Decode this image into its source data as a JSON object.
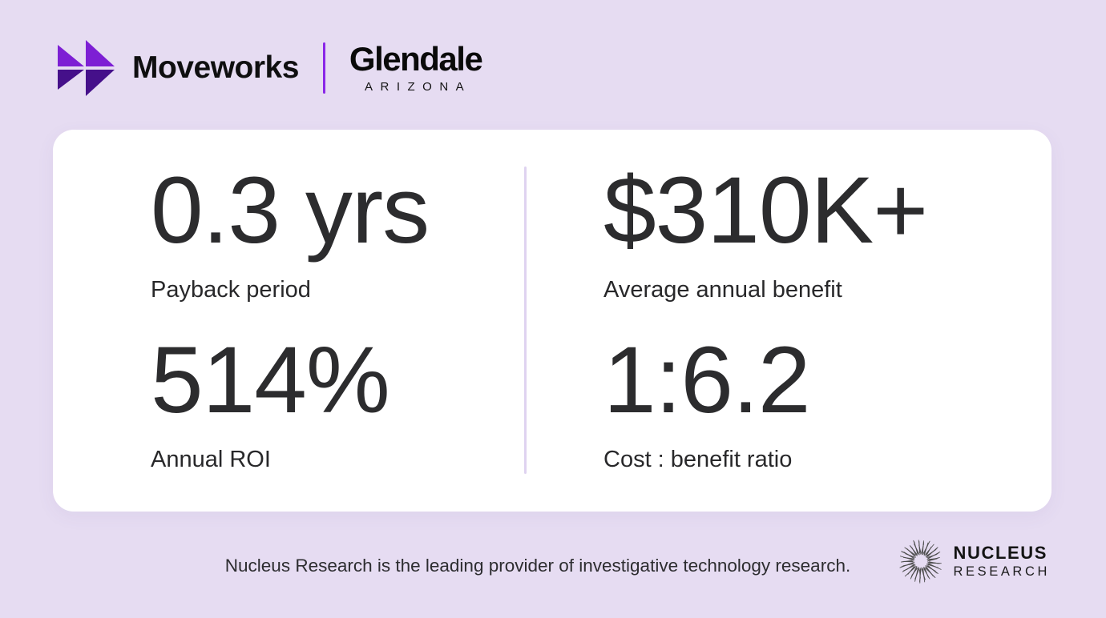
{
  "colors": {
    "bg": "#e6dcf2",
    "accent_purple": "#7d1fd4",
    "dark_purple": "#45108a",
    "divider_purple": "#8a27e8",
    "card_divider": "#dfd3f0",
    "ink": "#2c2c2e"
  },
  "header": {
    "moveworks_label": "Moveworks",
    "glendale_label": "Glendale",
    "glendale_sublabel": "ARIZONA"
  },
  "stats": [
    {
      "value": "0.3 yrs",
      "label": "Payback period"
    },
    {
      "value": "$310K+",
      "label": "Average annual benefit"
    },
    {
      "value": "514%",
      "label": "Annual ROI"
    },
    {
      "value": "1:6.2",
      "label": "Cost : benefit ratio"
    }
  ],
  "footer": {
    "tagline": "Nucleus Research is the leading provider of investigative technology research.",
    "brand_name": "NUCLEUS",
    "brand_subname": "RESEARCH"
  }
}
